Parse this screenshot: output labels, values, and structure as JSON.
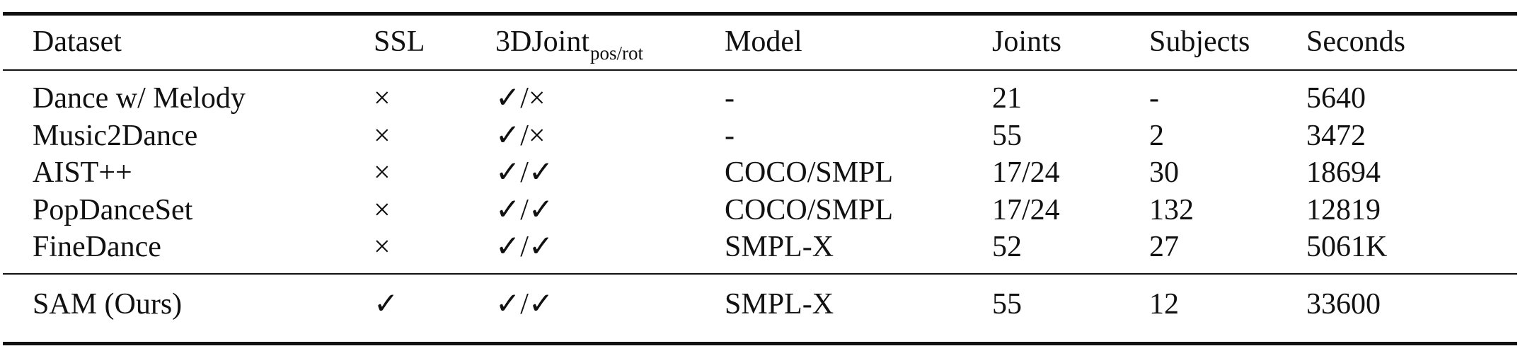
{
  "table": {
    "headers": {
      "dataset": "Dataset",
      "ssl": "SSL",
      "joint_base": "3DJoint",
      "joint_sub": "pos/rot",
      "model": "Model",
      "joints": "Joints",
      "subjects": "Subjects",
      "seconds": "Seconds"
    },
    "rows": [
      [
        "Dance w/ Melody",
        "×",
        "✓/×",
        "-",
        "21",
        "-",
        "5640"
      ],
      [
        "Music2Dance",
        "×",
        "✓/×",
        "-",
        "55",
        "2",
        "3472"
      ],
      [
        "AIST++",
        "×",
        "✓/✓",
        "COCO/SMPL",
        "17/24",
        "30",
        "18694"
      ],
      [
        "PopDanceSet",
        "×",
        "✓/✓",
        "COCO/SMPL",
        "17/24",
        "132",
        "12819"
      ],
      [
        "FineDance",
        "×",
        "✓/✓",
        "SMPL-X",
        "52",
        "27",
        "5061K"
      ],
      [
        "SAM (Ours)",
        "✓",
        "✓/✓",
        "SMPL-X",
        "55",
        "12",
        "33600"
      ]
    ]
  }
}
